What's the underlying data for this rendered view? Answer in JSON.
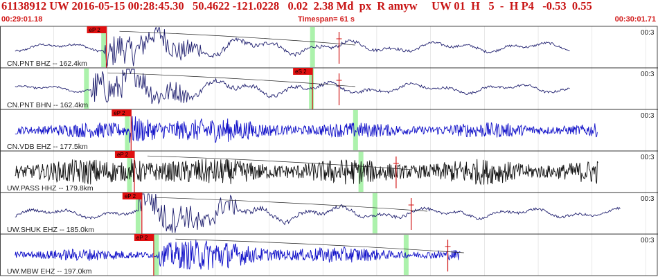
{
  "header": {
    "title": "61138912 UW 2016-05-15 00:28:45.30   50.4622 -121.0228   0.02  2.38 Md  px  R amyw     UW 01  H   5  -  H P4   -0.53  0.55",
    "start_time": "00:29:01.18",
    "timespan": "Timespan=  61 s",
    "end_time": "00:30:01.71"
  },
  "chart_data": {
    "type": "line",
    "x_unit": "s",
    "xlim": [
      0,
      61
    ],
    "grid": true,
    "traces": [
      {
        "label": "CN.PNT BHZ -- 162.4km",
        "scale": "00:3",
        "color": "#1e1e6e",
        "pick": "eP 2",
        "pick_x": 9.3,
        "s_pick": null,
        "s_x": null,
        "green_x": [
          9.6,
          29.0
        ],
        "theoretical_x": 31.5,
        "onset_x": 9.6,
        "data_end": 53.0,
        "noise": 0.25,
        "style": "lowfreq"
      },
      {
        "label": "CN.PNT BHN -- 162.4km",
        "scale": "00:3",
        "color": "#1e1e6e",
        "pick": null,
        "pick_x": null,
        "s_pick": "eS 2",
        "s_x": 28.9,
        "green_x": [
          8.0,
          28.9
        ],
        "theoretical_x": 31.5,
        "onset_x": 8.5,
        "data_end": 53.0,
        "noise": 0.2,
        "style": "lowfreq"
      },
      {
        "label": "CN.VDB EHZ -- 177.5km",
        "scale": "00:3",
        "color": "#1010c8",
        "pick": "eP 2",
        "pick_x": 11.6,
        "s_pick": null,
        "s_x": null,
        "green_x": [
          11.8,
          33.0
        ],
        "theoretical_x": null,
        "onset_x": 12.0,
        "data_end": 55.5,
        "noise": 0.45,
        "style": "highfreq"
      },
      {
        "label": "UW.PASS HHZ -- 179.8km",
        "scale": "00:3",
        "color": "#101010",
        "pick": "eP 2",
        "pick_x": 11.9,
        "s_pick": null,
        "s_x": null,
        "green_x": [
          12.0,
          33.5
        ],
        "theoretical_x": 36.8,
        "onset_x": 12.2,
        "data_end": 55.6,
        "noise": 0.75,
        "style": "highfreq"
      },
      {
        "label": "UW.SHUK EHZ -- 185.0km",
        "scale": "00:3",
        "color": "#1e1e6e",
        "pick": "eP 2",
        "pick_x": 12.6,
        "s_pick": null,
        "s_x": null,
        "green_x": [
          12.8,
          34.8
        ],
        "theoretical_x": 38.2,
        "onset_x": 12.9,
        "data_end": 57.7,
        "noise": 0.3,
        "style": "lowfreq"
      },
      {
        "label": "UW.MBW EHZ -- 197.0km",
        "scale": "00:3",
        "color": "#1010c8",
        "pick": "eP 2",
        "pick_x": 13.7,
        "s_pick": null,
        "s_x": null,
        "green_x": [
          14.5,
          37.7
        ],
        "theoretical_x": 41.6,
        "onset_x": 14.8,
        "data_end": 42.8,
        "noise": 0.35,
        "style": "highfreq"
      }
    ]
  }
}
